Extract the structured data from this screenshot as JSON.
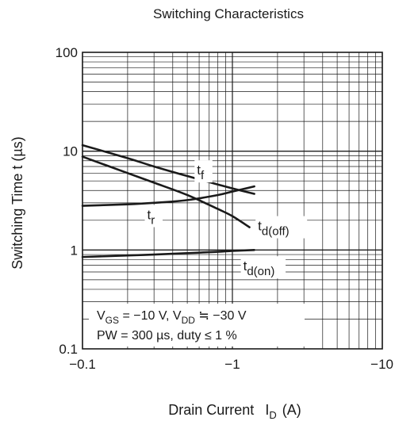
{
  "chart_data": {
    "type": "line",
    "title": "Switching Characteristics",
    "xlabel": {
      "main": "Drain Current",
      "sym": "I",
      "sub": "D",
      "unit": "(A)"
    },
    "ylabel": "Switching Time  t  (µs)",
    "x_scale": "log",
    "y_scale": "log",
    "xlim": [
      -0.1,
      -10
    ],
    "ylim": [
      0.1,
      100
    ],
    "grid": true,
    "xticks": [
      {
        "value": -0.1,
        "label": "−0.1"
      },
      {
        "value": -1,
        "label": "−1"
      },
      {
        "value": -10,
        "label": "−10"
      }
    ],
    "yticks": [
      {
        "value": 0.1,
        "label": "0.1"
      },
      {
        "value": 1,
        "label": "1"
      },
      {
        "value": 10,
        "label": "10"
      },
      {
        "value": 100,
        "label": "100"
      }
    ],
    "series": [
      {
        "name": "tf",
        "label_main": "t",
        "label_sub": "f",
        "x": [
          -0.1,
          -0.2,
          -0.3,
          -0.5,
          -0.8,
          -1.0,
          -1.4
        ],
        "y": [
          11.5,
          8.5,
          7.0,
          5.6,
          4.6,
          4.2,
          3.7
        ]
      },
      {
        "name": "td(off)",
        "label_main": "t",
        "label_sub": "d(off)",
        "x": [
          -0.1,
          -0.2,
          -0.3,
          -0.5,
          -0.8,
          -1.0,
          -1.3
        ],
        "y": [
          8.8,
          6.0,
          4.8,
          3.6,
          2.6,
          2.2,
          1.7
        ]
      },
      {
        "name": "tr",
        "label_main": "t",
        "label_sub": "r",
        "x": [
          -0.1,
          -0.2,
          -0.3,
          -0.5,
          -0.8,
          -1.0,
          -1.4
        ],
        "y": [
          2.8,
          2.9,
          3.0,
          3.2,
          3.6,
          3.9,
          4.4
        ]
      },
      {
        "name": "td(on)",
        "label_main": "t",
        "label_sub": "d(on)",
        "x": [
          -0.1,
          -0.2,
          -0.3,
          -0.5,
          -0.8,
          -1.0,
          -1.4
        ],
        "y": [
          0.85,
          0.88,
          0.9,
          0.93,
          0.96,
          0.98,
          1.0
        ]
      }
    ],
    "annotation": {
      "line1": {
        "v1": "V",
        "s1": "GS",
        "t1": " = −10 V, V",
        "s2": "DD",
        "t2": " ≒ −30 V"
      },
      "line2": "PW = 300 µs, duty ≤ 1 %"
    }
  }
}
